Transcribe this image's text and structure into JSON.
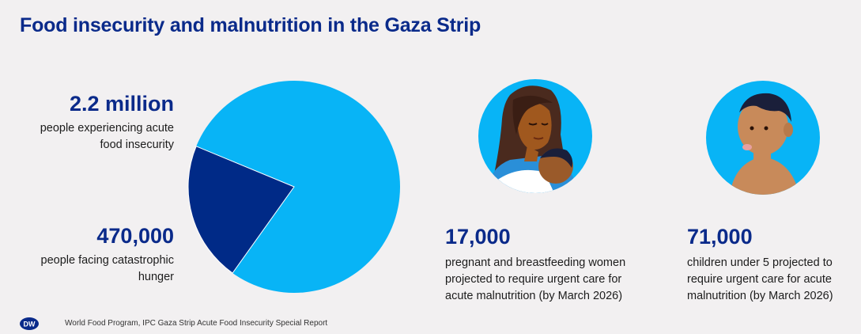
{
  "title": "Food insecurity and malnutrition in the Gaza Strip",
  "stats": {
    "total": {
      "value": "2.2 million",
      "desc_line1": "people experiencing acute",
      "desc_line2": "food insecurity"
    },
    "catastrophic": {
      "value": "470,000",
      "desc_line1": "people facing catastrophic",
      "desc_line2": "hunger"
    },
    "mothers": {
      "value": "17,000",
      "desc_line1": "pregnant and breastfeeding women",
      "desc_line2": "projected to require urgent care for",
      "desc_line3": "acute malnutrition (by March 2026)"
    },
    "children": {
      "value": "71,000",
      "desc_line1": "children under 5 projected to",
      "desc_line2": "require urgent care for acute",
      "desc_line3": "malnutrition (by March 2026)"
    }
  },
  "chart_data": {
    "type": "pie",
    "title": "",
    "slices": [
      {
        "label": "people experiencing acute food insecurity",
        "value": 2200000,
        "color": "#08b4f6"
      },
      {
        "label": "people facing catastrophic hunger",
        "value": 470000,
        "color": "#002a87"
      }
    ]
  },
  "icons": {
    "mother_icon": "mother-with-baby-icon",
    "child_icon": "child-icon",
    "logo": "DW"
  },
  "colors": {
    "accent": "#08b4f6",
    "brand": "#0a2a8a",
    "dark_slice": "#002a87"
  },
  "footer": {
    "source": "World Food Program, IPC Gaza Strip Acute Food Insecurity Special Report"
  }
}
